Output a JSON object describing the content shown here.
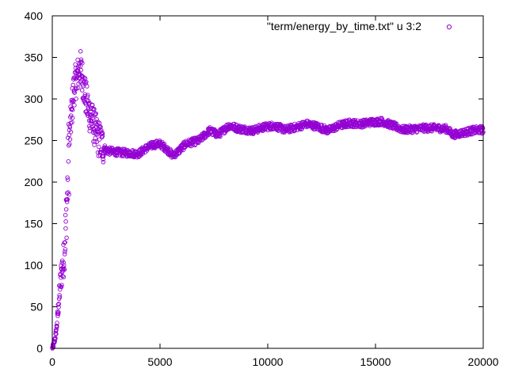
{
  "chart_data": {
    "type": "scatter",
    "xlim": [
      0,
      20000
    ],
    "ylim": [
      0,
      400
    ],
    "xticks": [
      0,
      5000,
      10000,
      15000,
      20000
    ],
    "yticks": [
      0,
      50,
      100,
      150,
      200,
      250,
      300,
      350,
      400
    ],
    "grid": false,
    "legend_position": "top-right",
    "marker": "open-circle",
    "series": [
      {
        "name": "\"term/energy_by_time.txt\" u 3:2",
        "color": "#9400d3",
        "trend": [
          [
            0,
            0
          ],
          [
            50,
            3
          ],
          [
            100,
            8
          ],
          [
            150,
            15
          ],
          [
            200,
            25
          ],
          [
            250,
            40
          ],
          [
            300,
            55
          ],
          [
            350,
            70
          ],
          [
            400,
            85
          ],
          [
            450,
            95
          ],
          [
            500,
            100
          ],
          [
            550,
            115
          ],
          [
            600,
            135
          ],
          [
            650,
            160
          ],
          [
            700,
            190
          ],
          [
            750,
            225
          ],
          [
            800,
            250
          ],
          [
            850,
            270
          ],
          [
            900,
            285
          ],
          [
            950,
            300
          ],
          [
            1000,
            312
          ],
          [
            1100,
            322
          ],
          [
            1200,
            330
          ],
          [
            1300,
            338
          ],
          [
            1400,
            325
          ],
          [
            1500,
            310
          ],
          [
            1600,
            295
          ],
          [
            1700,
            285
          ],
          [
            1800,
            278
          ],
          [
            1900,
            270
          ],
          [
            2000,
            262
          ],
          [
            2100,
            255
          ],
          [
            2200,
            250
          ],
          [
            2300,
            245
          ],
          [
            2500,
            238
          ],
          [
            3000,
            236
          ],
          [
            3500,
            235
          ],
          [
            4000,
            234
          ],
          [
            4300,
            240
          ],
          [
            4700,
            245
          ],
          [
            5000,
            246
          ],
          [
            5300,
            240
          ],
          [
            5600,
            232
          ],
          [
            5800,
            236
          ],
          [
            6200,
            246
          ],
          [
            6800,
            250
          ],
          [
            7300,
            262
          ],
          [
            7700,
            257
          ],
          [
            8200,
            268
          ],
          [
            8700,
            264
          ],
          [
            9300,
            262
          ],
          [
            9800,
            266
          ],
          [
            10300,
            268
          ],
          [
            10800,
            263
          ],
          [
            11300,
            266
          ],
          [
            11800,
            270
          ],
          [
            12300,
            267
          ],
          [
            12800,
            262
          ],
          [
            13300,
            268
          ],
          [
            13800,
            271
          ],
          [
            14300,
            270
          ],
          [
            14800,
            272
          ],
          [
            15300,
            273
          ],
          [
            15800,
            268
          ],
          [
            16300,
            263
          ],
          [
            16800,
            264
          ],
          [
            17300,
            265
          ],
          [
            17800,
            265
          ],
          [
            18300,
            264
          ],
          [
            18600,
            257
          ],
          [
            19000,
            259
          ],
          [
            19500,
            262
          ],
          [
            20000,
            263
          ]
        ]
      }
    ]
  }
}
